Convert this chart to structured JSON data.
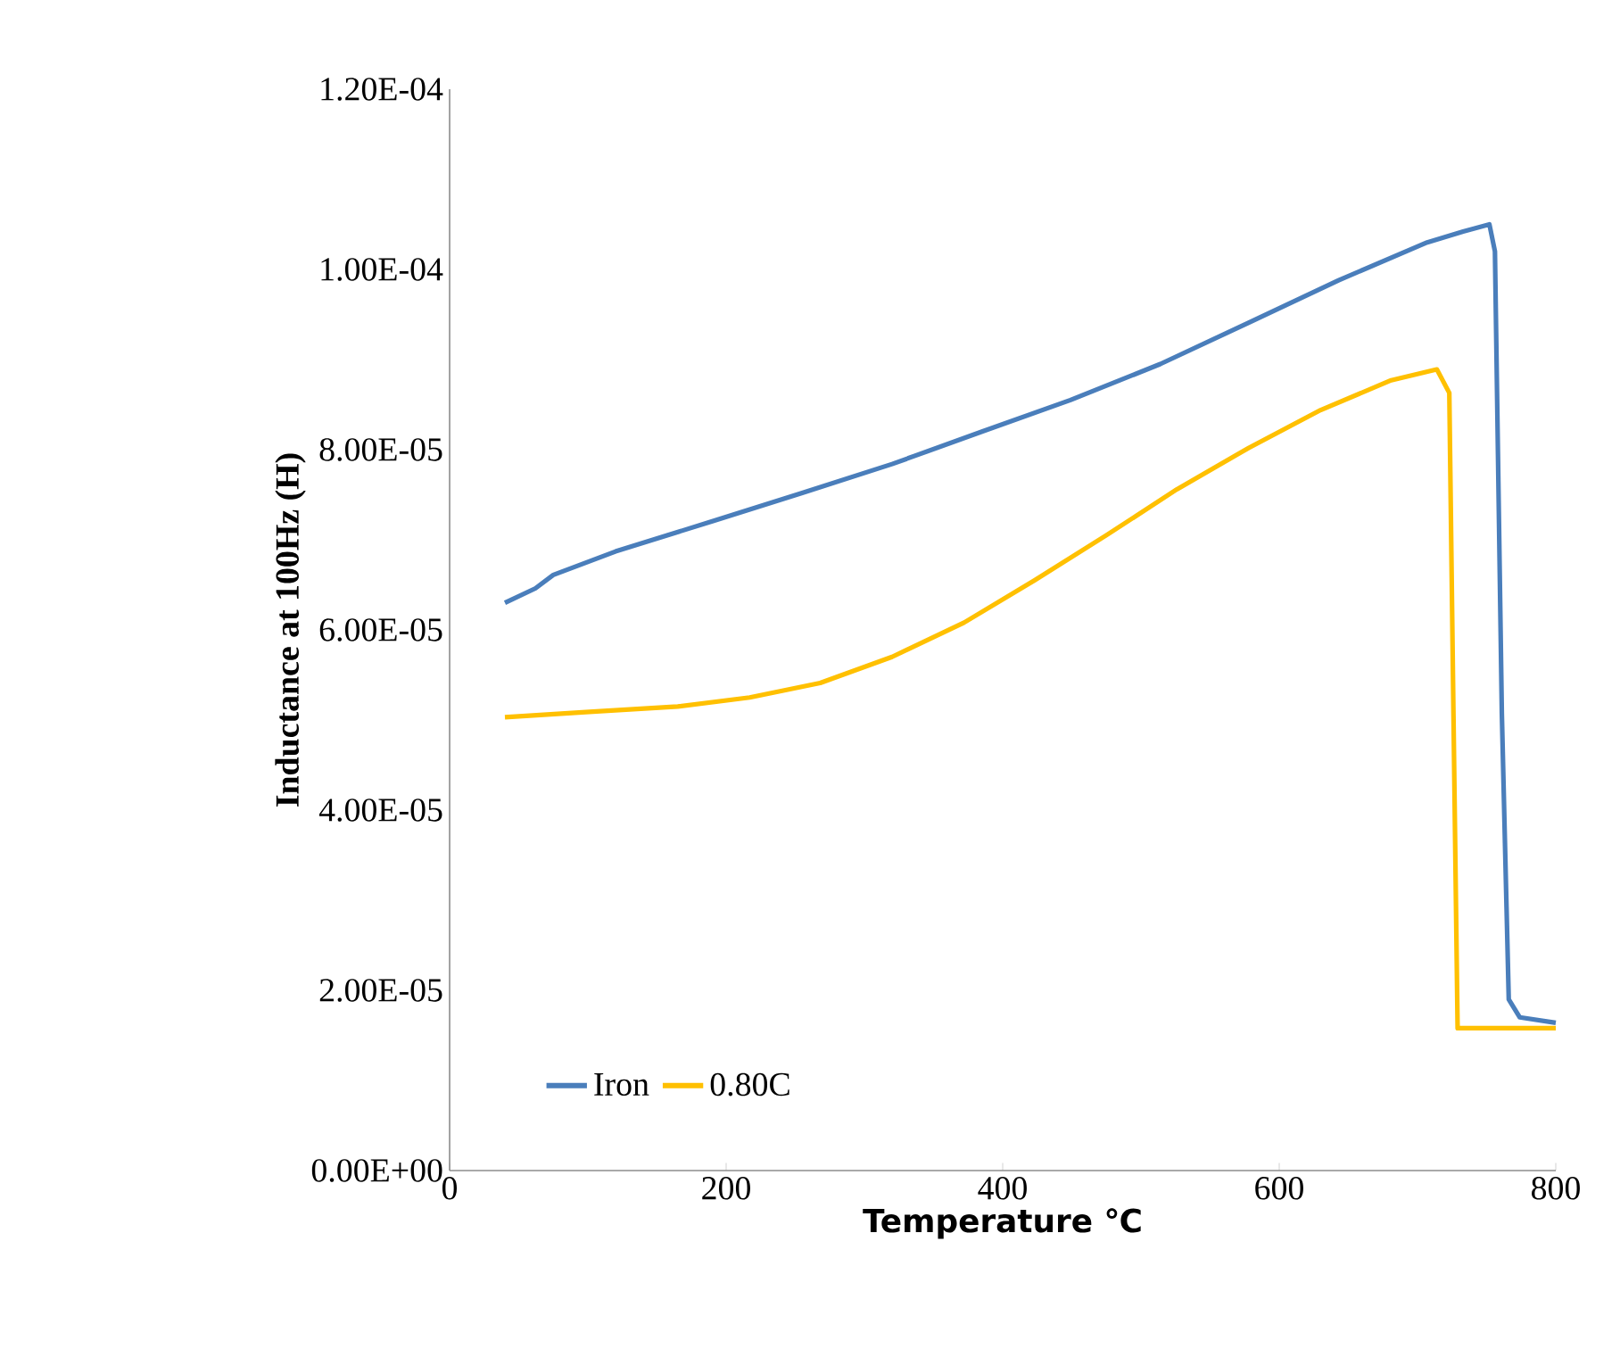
{
  "chart_data": {
    "type": "line",
    "xlabel": "Temperature ℃",
    "ylabel": "Inductance at 100Hz (H)",
    "xlim": [
      0,
      800
    ],
    "xticks": [
      0,
      200,
      400,
      600,
      800
    ],
    "ylim": [
      0,
      0.00012
    ],
    "yticks": [
      {
        "value": 0,
        "label": "0.00E+00"
      },
      {
        "value": 2e-05,
        "label": "2.00E-05"
      },
      {
        "value": 4e-05,
        "label": "4.00E-05"
      },
      {
        "value": 6e-05,
        "label": "6.00E-05"
      },
      {
        "value": 8e-05,
        "label": "8.00E-05"
      },
      {
        "value": 0.0001,
        "label": "1.00E-04"
      },
      {
        "value": 0.00012,
        "label": "1.20E-04"
      }
    ],
    "grid": false,
    "legend": "bottom left",
    "marker": "none",
    "line_style": "solid",
    "series": [
      {
        "name": "Iron",
        "color": "#4a7ebb",
        "x": [
          40,
          62,
          75,
          120,
          191,
          255,
          320,
          385,
          449,
          514,
          578,
          643,
          707,
          733,
          752,
          756,
          761,
          766,
          774,
          800
        ],
        "values": [
          6.3e-05,
          6.46e-05,
          6.61e-05,
          6.87e-05,
          7.21e-05,
          7.52e-05,
          7.84e-05,
          8.2e-05,
          8.55e-05,
          8.95e-05,
          9.41e-05,
          9.88e-05,
          0.000103,
          0.0001042,
          0.000105,
          0.000102,
          5.07e-05,
          1.9e-05,
          1.7e-05,
          1.64e-05
        ]
      },
      {
        "name": "0.80C",
        "color": "#ffc000",
        "x": [
          40,
          101,
          165,
          217,
          268,
          320,
          372,
          423,
          475,
          526,
          578,
          630,
          681,
          714,
          723,
          726,
          729,
          746,
          800
        ],
        "values": [
          5.03e-05,
          5.09e-05,
          5.15e-05,
          5.25e-05,
          5.41e-05,
          5.7e-05,
          6.08e-05,
          6.55e-05,
          7.05e-05,
          7.56e-05,
          8.02e-05,
          8.44e-05,
          8.77e-05,
          8.89e-05,
          8.63e-05,
          5.07e-05,
          1.58e-05,
          1.58e-05,
          1.58e-05
        ]
      }
    ]
  }
}
